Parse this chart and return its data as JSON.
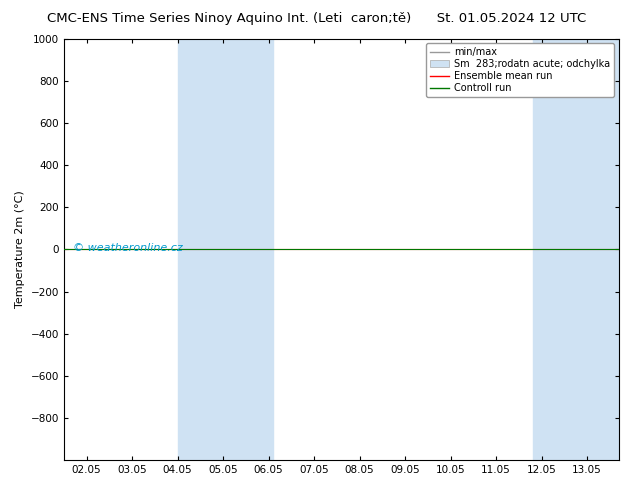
{
  "title": "CMC-ENS Time Series Ninoy Aquino Int. (Leti  caron;tě)",
  "title_right": "St. 01.05.2024 12 UTC",
  "ylabel": "Temperature 2m (°C)",
  "ylim_top": -1000,
  "ylim_bottom": 1000,
  "yticks": [
    -800,
    -600,
    -400,
    -200,
    0,
    200,
    400,
    600,
    800,
    1000
  ],
  "xtick_labels": [
    "02.05",
    "03.05",
    "04.05",
    "05.05",
    "06.05",
    "07.05",
    "08.05",
    "09.05",
    "10.05",
    "11.05",
    "12.05",
    "13.05"
  ],
  "xtick_positions": [
    0,
    1,
    2,
    3,
    4,
    5,
    6,
    7,
    8,
    9,
    10,
    11
  ],
  "xlim": [
    -0.5,
    11.7
  ],
  "shaded_bands": [
    {
      "x_start": 2.0,
      "x_end": 4.1
    },
    {
      "x_start": 9.8,
      "x_end": 11.7
    }
  ],
  "shade_color": "#cfe2f3",
  "ensemble_mean_color": "#ff0000",
  "control_run_color": "#007700",
  "minmax_color": "#999999",
  "watermark": "© weatheronline.cz",
  "watermark_color": "#0099cc",
  "background_color": "#ffffff",
  "legend_entries": [
    "min/max",
    "Sm  283;rodatn acute; odchylka",
    "Ensemble mean run",
    "Controll run"
  ],
  "flat_y_control": 0,
  "flat_y_ensemble": 0
}
